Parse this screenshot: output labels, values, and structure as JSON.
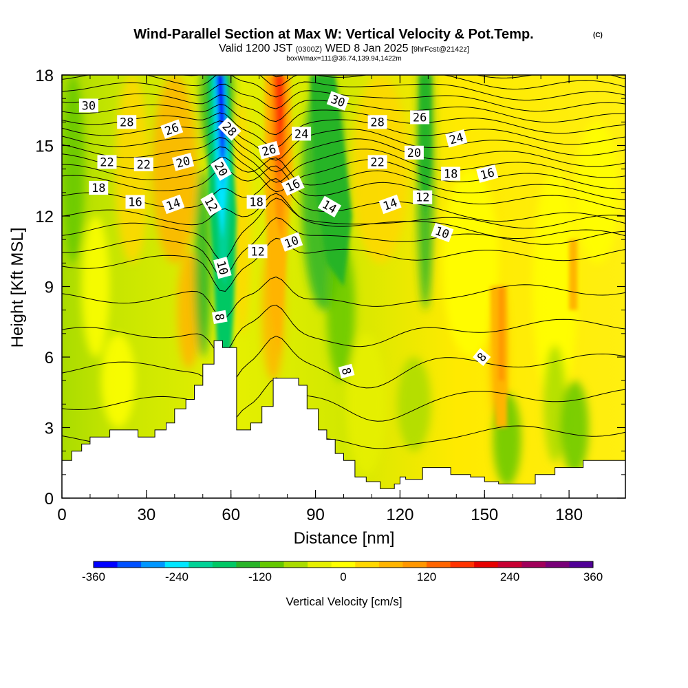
{
  "chart_data": {
    "type": "heatmap",
    "title": "Wind-Parallel Section at Max W: Vertical Velocity & Pot.Temp.",
    "title_mark": "(C)",
    "subtitle": {
      "part1": "Valid 1200 JST",
      "part2": "(0300Z)",
      "part3": "WED 8 Jan 2025",
      "part4": "[9hrFcst@2142z]"
    },
    "subtitle2": "boxWmax=111@36.74,139.94,1422m",
    "xlabel": "Distance [nm]",
    "ylabel": "Height [Kft MSL]",
    "xlim": [
      0,
      200
    ],
    "ylim": [
      0,
      18
    ],
    "x_ticks": [
      "0",
      "30",
      "60",
      "90",
      "120",
      "150",
      "180"
    ],
    "y_ticks": [
      "0",
      "3",
      "6",
      "9",
      "12",
      "15",
      "18"
    ],
    "colorbar": {
      "label": "Vertical Velocity [cm/s]",
      "range": [
        -360,
        360
      ],
      "tick_labels": [
        "-360",
        "-240",
        "-120",
        "0",
        "120",
        "240",
        "360"
      ],
      "colors": [
        "#0000ff",
        "#0050ff",
        "#0096ff",
        "#00e6ff",
        "#00d296",
        "#00c864",
        "#28b428",
        "#64c800",
        "#aadc00",
        "#e6f000",
        "#ffff00",
        "#ffd700",
        "#ffb400",
        "#ff9600",
        "#ff6400",
        "#ff3200",
        "#e60000",
        "#c80032",
        "#a0005a",
        "#780078",
        "#500096"
      ]
    },
    "terrain_profile": {
      "x": [
        0,
        3.5,
        7,
        10,
        17,
        20,
        27,
        33,
        37,
        40,
        44,
        47,
        50,
        54,
        57,
        62,
        67,
        71,
        75,
        79,
        84,
        87,
        91,
        94,
        97,
        100,
        104,
        108,
        113,
        118,
        120,
        122,
        128,
        138,
        145,
        150,
        155,
        160,
        168,
        175,
        185,
        200
      ],
      "height": [
        1.6,
        2.0,
        2.3,
        2.6,
        2.9,
        2.9,
        2.6,
        2.9,
        3.2,
        3.8,
        4.2,
        4.8,
        5.7,
        6.7,
        6.4,
        2.9,
        3.2,
        3.9,
        5.1,
        5.1,
        4.8,
        3.8,
        2.9,
        2.5,
        1.9,
        1.6,
        0.9,
        0.7,
        0.4,
        0.6,
        0.9,
        0.8,
        1.3,
        1.0,
        0.9,
        0.7,
        0.6,
        0.6,
        1.0,
        1.3,
        1.6,
        1.6
      ]
    },
    "updraft_regions": [
      {
        "name": "strong downdraft core",
        "x_range": [
          53,
          61
        ],
        "height_range": [
          3,
          18
        ],
        "min_velocity": -360
      },
      {
        "name": "strong updraft core",
        "x_range": [
          72,
          82
        ],
        "height_range": [
          8,
          18
        ],
        "max_velocity": 240
      },
      {
        "name": "downdraft band",
        "x_range": [
          86,
          104
        ],
        "height_range": [
          9,
          18
        ],
        "min_velocity": -120
      }
    ],
    "contour_labels": [
      {
        "text": "30",
        "x": 9.5,
        "height": 16.7,
        "rotate": 0
      },
      {
        "text": "28",
        "x": 23,
        "height": 16.0,
        "rotate": 0
      },
      {
        "text": "26",
        "x": 39,
        "height": 15.7,
        "rotate": -20
      },
      {
        "text": "28",
        "x": 59.5,
        "height": 15.7,
        "rotate": 45
      },
      {
        "text": "30",
        "x": 98,
        "height": 16.9,
        "rotate": 20
      },
      {
        "text": "28",
        "x": 112,
        "height": 16.0,
        "rotate": 0
      },
      {
        "text": "26",
        "x": 127,
        "height": 16.2,
        "rotate": 0
      },
      {
        "text": "24",
        "x": 85,
        "height": 15.5,
        "rotate": 0
      },
      {
        "text": "24",
        "x": 140,
        "height": 15.3,
        "rotate": -15
      },
      {
        "text": "22",
        "x": 16,
        "height": 14.3,
        "rotate": 0
      },
      {
        "text": "22",
        "x": 29,
        "height": 14.2,
        "rotate": 0
      },
      {
        "text": "20",
        "x": 43,
        "height": 14.3,
        "rotate": -15
      },
      {
        "text": "20",
        "x": 56.5,
        "height": 14.0,
        "rotate": 60
      },
      {
        "text": "26",
        "x": 73.5,
        "height": 14.8,
        "rotate": -15
      },
      {
        "text": "22",
        "x": 112,
        "height": 14.3,
        "rotate": 0
      },
      {
        "text": "20",
        "x": 125,
        "height": 14.7,
        "rotate": 0
      },
      {
        "text": "18",
        "x": 13,
        "height": 13.2,
        "rotate": 0
      },
      {
        "text": "18",
        "x": 138,
        "height": 13.8,
        "rotate": 0
      },
      {
        "text": "16",
        "x": 151,
        "height": 13.8,
        "rotate": -15
      },
      {
        "text": "16",
        "x": 82,
        "height": 13.3,
        "rotate": -25
      },
      {
        "text": "16",
        "x": 26,
        "height": 12.6,
        "rotate": 0
      },
      {
        "text": "14",
        "x": 39.5,
        "height": 12.5,
        "rotate": -20
      },
      {
        "text": "12",
        "x": 53,
        "height": 12.5,
        "rotate": 60
      },
      {
        "text": "18",
        "x": 69,
        "height": 12.6,
        "rotate": 0
      },
      {
        "text": "14",
        "x": 95,
        "height": 12.4,
        "rotate": 30
      },
      {
        "text": "14",
        "x": 116.5,
        "height": 12.5,
        "rotate": -20
      },
      {
        "text": "12",
        "x": 128,
        "height": 12.8,
        "rotate": 0
      },
      {
        "text": "10",
        "x": 135,
        "height": 11.3,
        "rotate": 20
      },
      {
        "text": "10",
        "x": 81.5,
        "height": 10.9,
        "rotate": -20
      },
      {
        "text": "12",
        "x": 69.5,
        "height": 10.5,
        "rotate": 0
      },
      {
        "text": "10",
        "x": 57,
        "height": 9.8,
        "rotate": 75
      },
      {
        "text": "8",
        "x": 56,
        "height": 7.7,
        "rotate": 80
      },
      {
        "text": "8",
        "x": 101,
        "height": 5.4,
        "rotate": 75
      },
      {
        "text": "8",
        "x": 149,
        "height": 6.0,
        "rotate": -50
      }
    ]
  }
}
